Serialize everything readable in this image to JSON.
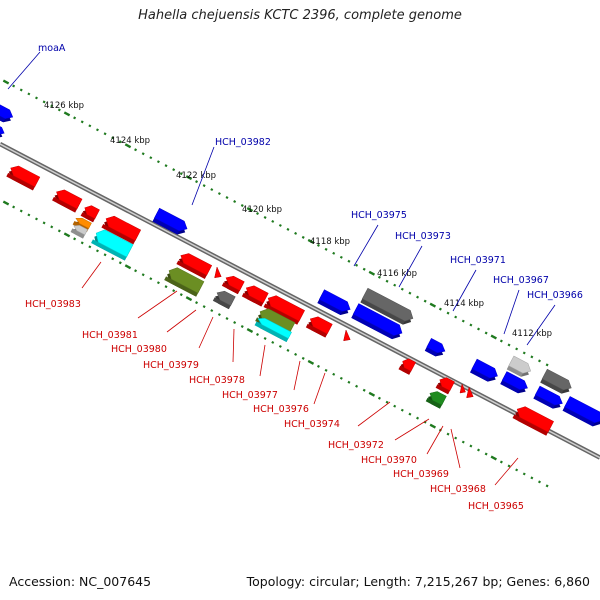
{
  "title": "Hahella chejuensis KCTC 2396, complete genome",
  "footer": {
    "accession": "Accession: NC_007645",
    "stats": "Topology: circular; Length: 7,215,267 bp; Genes: 6,860"
  },
  "colors": {
    "backbone": "#777777",
    "tick": "#1f7a1f",
    "forward_label": "#0000aa",
    "reverse_label": "#cc0000",
    "red": "#ff0000",
    "blue": "#0000ff",
    "gray": "#666666",
    "lightgray": "#cccccc",
    "cyan": "#00ffff",
    "olive": "#6b8e23",
    "green": "#1f8b1f",
    "orange": "#ff8c00"
  },
  "scale_ticks": [
    {
      "label": "4126 kbp",
      "pos": 4126
    },
    {
      "label": "4124 kbp",
      "pos": 4124
    },
    {
      "label": "4122 kbp",
      "pos": 4122
    },
    {
      "label": "4120 kbp",
      "pos": 4120
    },
    {
      "label": "4118 kbp",
      "pos": 4118
    },
    {
      "label": "4116 kbp",
      "pos": 4116
    },
    {
      "label": "4114 kbp",
      "pos": 4114
    },
    {
      "label": "4112 kbp",
      "pos": 4112
    }
  ],
  "forward_labels": [
    "moaA",
    "HCH_03982",
    "HCH_03975",
    "HCH_03973",
    "HCH_03971",
    "HCH_03967",
    "HCH_03966"
  ],
  "reverse_labels": [
    "HCH_03983",
    "HCH_03981",
    "HCH_03980",
    "HCH_03979",
    "HCH_03978",
    "HCH_03977",
    "HCH_03976",
    "HCH_03974",
    "HCH_03972",
    "HCH_03970",
    "HCH_03969",
    "HCH_03968",
    "HCH_03965"
  ]
}
